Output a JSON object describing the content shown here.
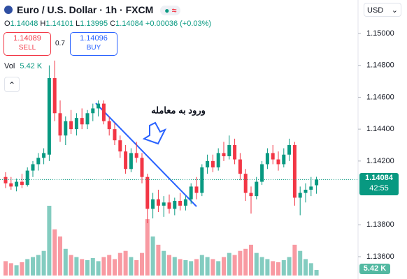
{
  "chart_data": {
    "type": "candlestick",
    "title": "Euro / U.S. Dollar · 1h · FXCM",
    "ohlc_labels": [
      "O",
      "H",
      "L",
      "C"
    ],
    "change": "+0.00036 (+0.03%)",
    "sell_price": 1.14089,
    "sell_label": "SELL",
    "spread": 0.7,
    "buy_price": 1.14096,
    "buy_label": "BUY",
    "volume_title": "Vol",
    "volume_label": "5.42 K",
    "currency": "USD",
    "countdown": "42:55",
    "annotation": "ورود به معامله",
    "up_color": "#089981",
    "down_color": "#f23645",
    "open": [
      1.141,
      1.1406,
      1.1404,
      1.1407,
      1.1405,
      1.1414,
      1.1418,
      1.1422,
      1.1424,
      1.1472,
      1.145,
      1.1436,
      1.1445,
      1.144,
      1.1447,
      1.1443,
      1.145,
      1.1453,
      1.1456,
      1.1445,
      1.144,
      1.1433,
      1.1426,
      1.1415,
      1.1425,
      1.1422,
      1.141,
      1.139,
      1.1396,
      1.1392,
      1.1394,
      1.139,
      1.1395,
      1.1392,
      1.1396,
      1.1404,
      1.14,
      1.1416,
      1.142,
      1.1416,
      1.1425,
      1.1423,
      1.143,
      1.1421,
      1.1412,
      1.14,
      1.1398,
      1.1407,
      1.1418,
      1.1425,
      1.1421,
      1.1418,
      1.1424,
      1.143,
      1.1397,
      1.14,
      1.1402,
      1.14048
    ],
    "high": [
      1.1413,
      1.141,
      1.1409,
      1.1412,
      1.1416,
      1.142,
      1.1425,
      1.1428,
      1.148,
      1.1483,
      1.1458,
      1.1448,
      1.1452,
      1.145,
      1.1453,
      1.1452,
      1.1456,
      1.1458,
      1.1458,
      1.1448,
      1.1444,
      1.1436,
      1.143,
      1.1428,
      1.1432,
      1.1425,
      1.1412,
      1.14,
      1.1402,
      1.1398,
      1.1399,
      1.1397,
      1.14,
      1.1398,
      1.1406,
      1.141,
      1.1418,
      1.1424,
      1.1424,
      1.1428,
      1.1432,
      1.1436,
      1.1434,
      1.1425,
      1.1415,
      1.1404,
      1.141,
      1.142,
      1.1428,
      1.143,
      1.1426,
      1.1428,
      1.1434,
      1.1432,
      1.1404,
      1.1406,
      1.141,
      1.14101
    ],
    "low": [
      1.1403,
      1.1402,
      1.1401,
      1.1403,
      1.1404,
      1.141,
      1.1414,
      1.1418,
      1.142,
      1.1445,
      1.1432,
      1.143,
      1.1437,
      1.1436,
      1.144,
      1.144,
      1.1445,
      1.1448,
      1.1443,
      1.1436,
      1.143,
      1.1422,
      1.1412,
      1.1413,
      1.1419,
      1.1406,
      1.1381,
      1.1384,
      1.1388,
      1.1385,
      1.1387,
      1.1386,
      1.1389,
      1.1389,
      1.1393,
      1.1396,
      1.1398,
      1.1412,
      1.1413,
      1.1414,
      1.142,
      1.1421,
      1.1418,
      1.1408,
      1.1395,
      1.1387,
      1.1396,
      1.1405,
      1.1415,
      1.1418,
      1.1414,
      1.1416,
      1.142,
      1.1392,
      1.1386,
      1.1394,
      1.1398,
      1.13995
    ],
    "close": [
      1.1406,
      1.1404,
      1.1407,
      1.1405,
      1.1414,
      1.1418,
      1.1422,
      1.1425,
      1.1472,
      1.145,
      1.1436,
      1.1445,
      1.144,
      1.1447,
      1.1443,
      1.145,
      1.1453,
      1.1456,
      1.1445,
      1.144,
      1.1433,
      1.1426,
      1.1415,
      1.1425,
      1.1422,
      1.141,
      1.139,
      1.1396,
      1.1392,
      1.1394,
      1.139,
      1.1395,
      1.1392,
      1.1396,
      1.1404,
      1.14,
      1.1416,
      1.142,
      1.1416,
      1.1425,
      1.1423,
      1.143,
      1.1421,
      1.1412,
      1.14,
      1.1398,
      1.1407,
      1.1418,
      1.1425,
      1.1421,
      1.1418,
      1.1424,
      1.143,
      1.1397,
      1.14,
      1.1402,
      1.1404,
      1.14084
    ],
    "volume": [
      14,
      12,
      10,
      13,
      16,
      18,
      20,
      24,
      68,
      45,
      38,
      26,
      20,
      18,
      16,
      15,
      17,
      14,
      18,
      20,
      16,
      22,
      24,
      18,
      15,
      22,
      55,
      38,
      30,
      24,
      20,
      18,
      16,
      15,
      14,
      16,
      20,
      18,
      16,
      14,
      18,
      22,
      20,
      24,
      26,
      30,
      22,
      18,
      16,
      14,
      13,
      15,
      18,
      30,
      24,
      16,
      12,
      5.42
    ],
    "ylim": [
      1.1346,
      1.1521
    ],
    "yticks": [
      {
        "value": 1.15,
        "label": "1.15000"
      },
      {
        "value": 1.148,
        "label": "1.14800"
      },
      {
        "value": 1.146,
        "label": "1.14600"
      },
      {
        "value": 1.144,
        "label": "1.14400"
      },
      {
        "value": 1.142,
        "label": "1.14200"
      },
      {
        "value": 1.138,
        "label": "1.13800"
      },
      {
        "value": 1.136,
        "label": "1.13600"
      }
    ]
  }
}
